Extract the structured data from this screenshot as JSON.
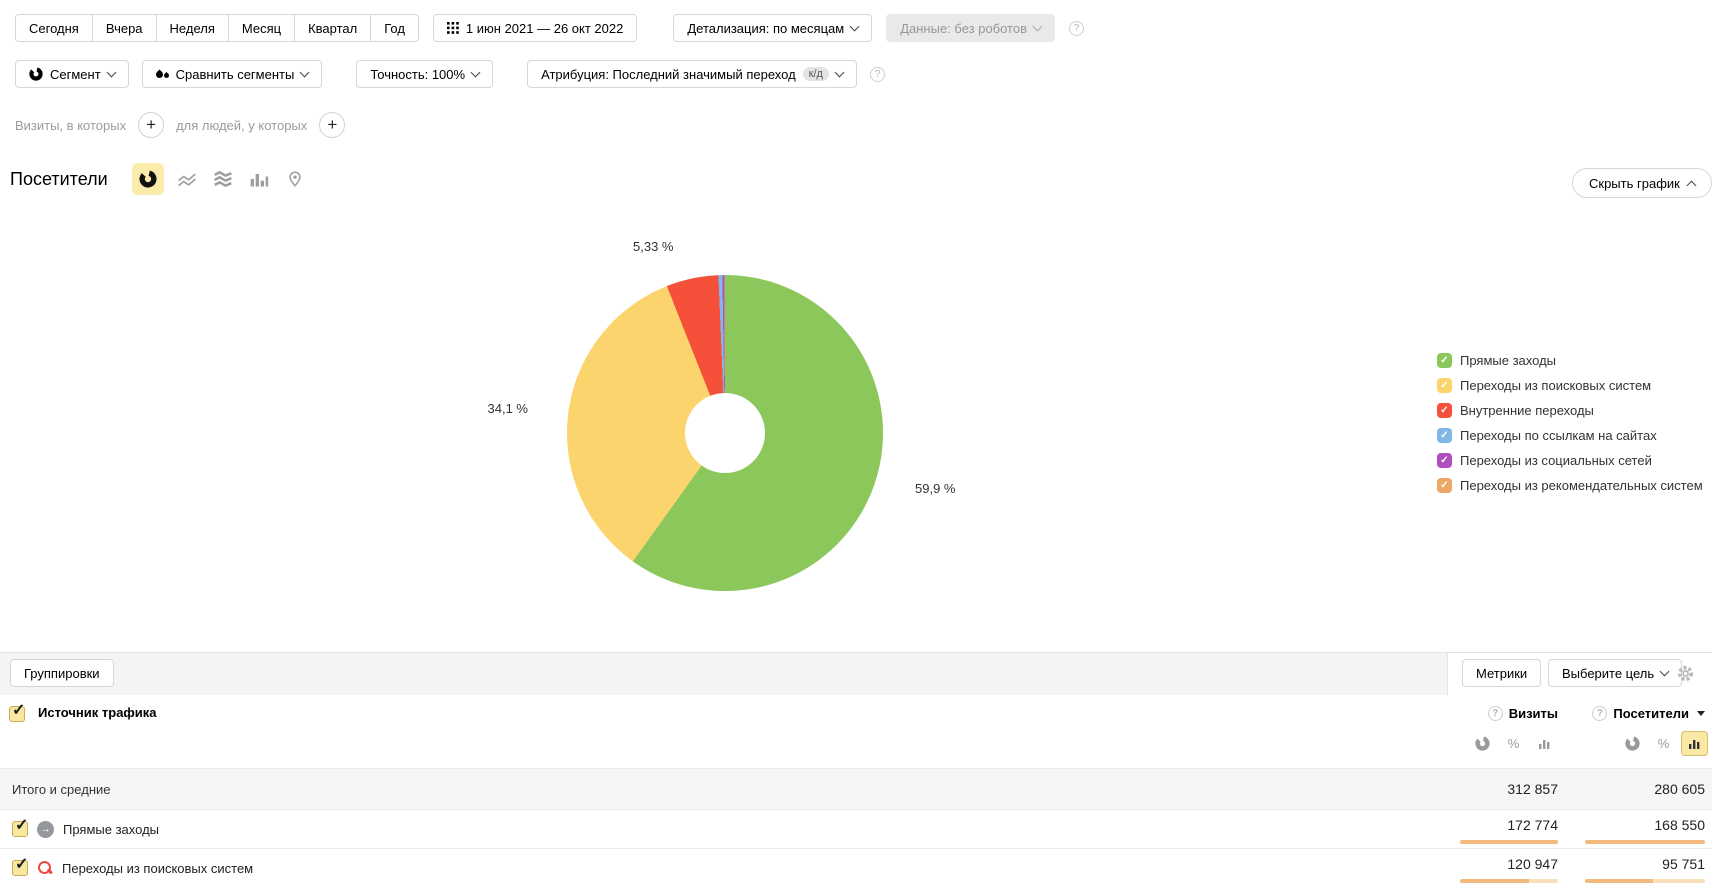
{
  "toolbar_top": {
    "quick_ranges": [
      "Сегодня",
      "Вчера",
      "Неделя",
      "Месяц",
      "Квартал",
      "Год"
    ],
    "date_range": "1 июн 2021 — 26 окт 2022",
    "detail": "Детализация: по месяцам",
    "data_mode": "Данные: без роботов"
  },
  "toolbar_segments": {
    "segment": "Сегмент",
    "compare": "Сравнить сегменты",
    "accuracy": "Точность: 100%",
    "attribution": "Атрибуция: Последний значимый переход",
    "attribution_badge": "к/д"
  },
  "filters": {
    "visits_label": "Визиты, в которых",
    "people_label": "для людей, у которых",
    "plus": "+"
  },
  "chart_header": {
    "title": "Посетители",
    "hide_chart": "Скрыть график"
  },
  "chart_data": {
    "type": "pie",
    "donut": true,
    "unit": "%",
    "legend_position": "right",
    "slices": [
      {
        "label": "Прямые заходы",
        "value": 59.9,
        "display": "59,9 %",
        "color": "#8cc75b"
      },
      {
        "label": "Переходы из поисковых систем",
        "value": 34.1,
        "display": "34,1 %",
        "color": "#fcd46d"
      },
      {
        "label": "Внутренние переходы",
        "value": 5.33,
        "display": "5,33 %",
        "color": "#f4503a"
      },
      {
        "label": "Переходы по ссылкам на сайтах",
        "value": 0.4,
        "display": "",
        "color": "#82b8e6"
      },
      {
        "label": "Переходы из социальных сетей",
        "value": 0.2,
        "display": "",
        "color": "#b14fc0"
      },
      {
        "label": "Переходы из рекомендательных систем",
        "value": 0.07,
        "display": "",
        "color": "#eda766"
      }
    ]
  },
  "table": {
    "groupings_btn": "Группировки",
    "metrics_btn": "Метрики",
    "goal_btn": "Выберите цель",
    "dimension_header": "Источник трафика",
    "metric_columns": [
      "Визиты",
      "Посетители"
    ],
    "totals_label": "Итого и средние",
    "totals": {
      "visits": "312 857",
      "visitors": "280 605"
    },
    "rows": [
      {
        "label": "Прямые заходы",
        "icon": "direct-arrow-icon",
        "visits": "172 774",
        "visitors": "168 550",
        "visits_bar": 100,
        "visitors_bar": 100
      },
      {
        "label": "Переходы из поисковых систем",
        "icon": "search-magnifier-icon",
        "visits": "120 947",
        "visitors": "95 751",
        "visits_bar": 70,
        "visitors_bar": 57
      }
    ]
  }
}
